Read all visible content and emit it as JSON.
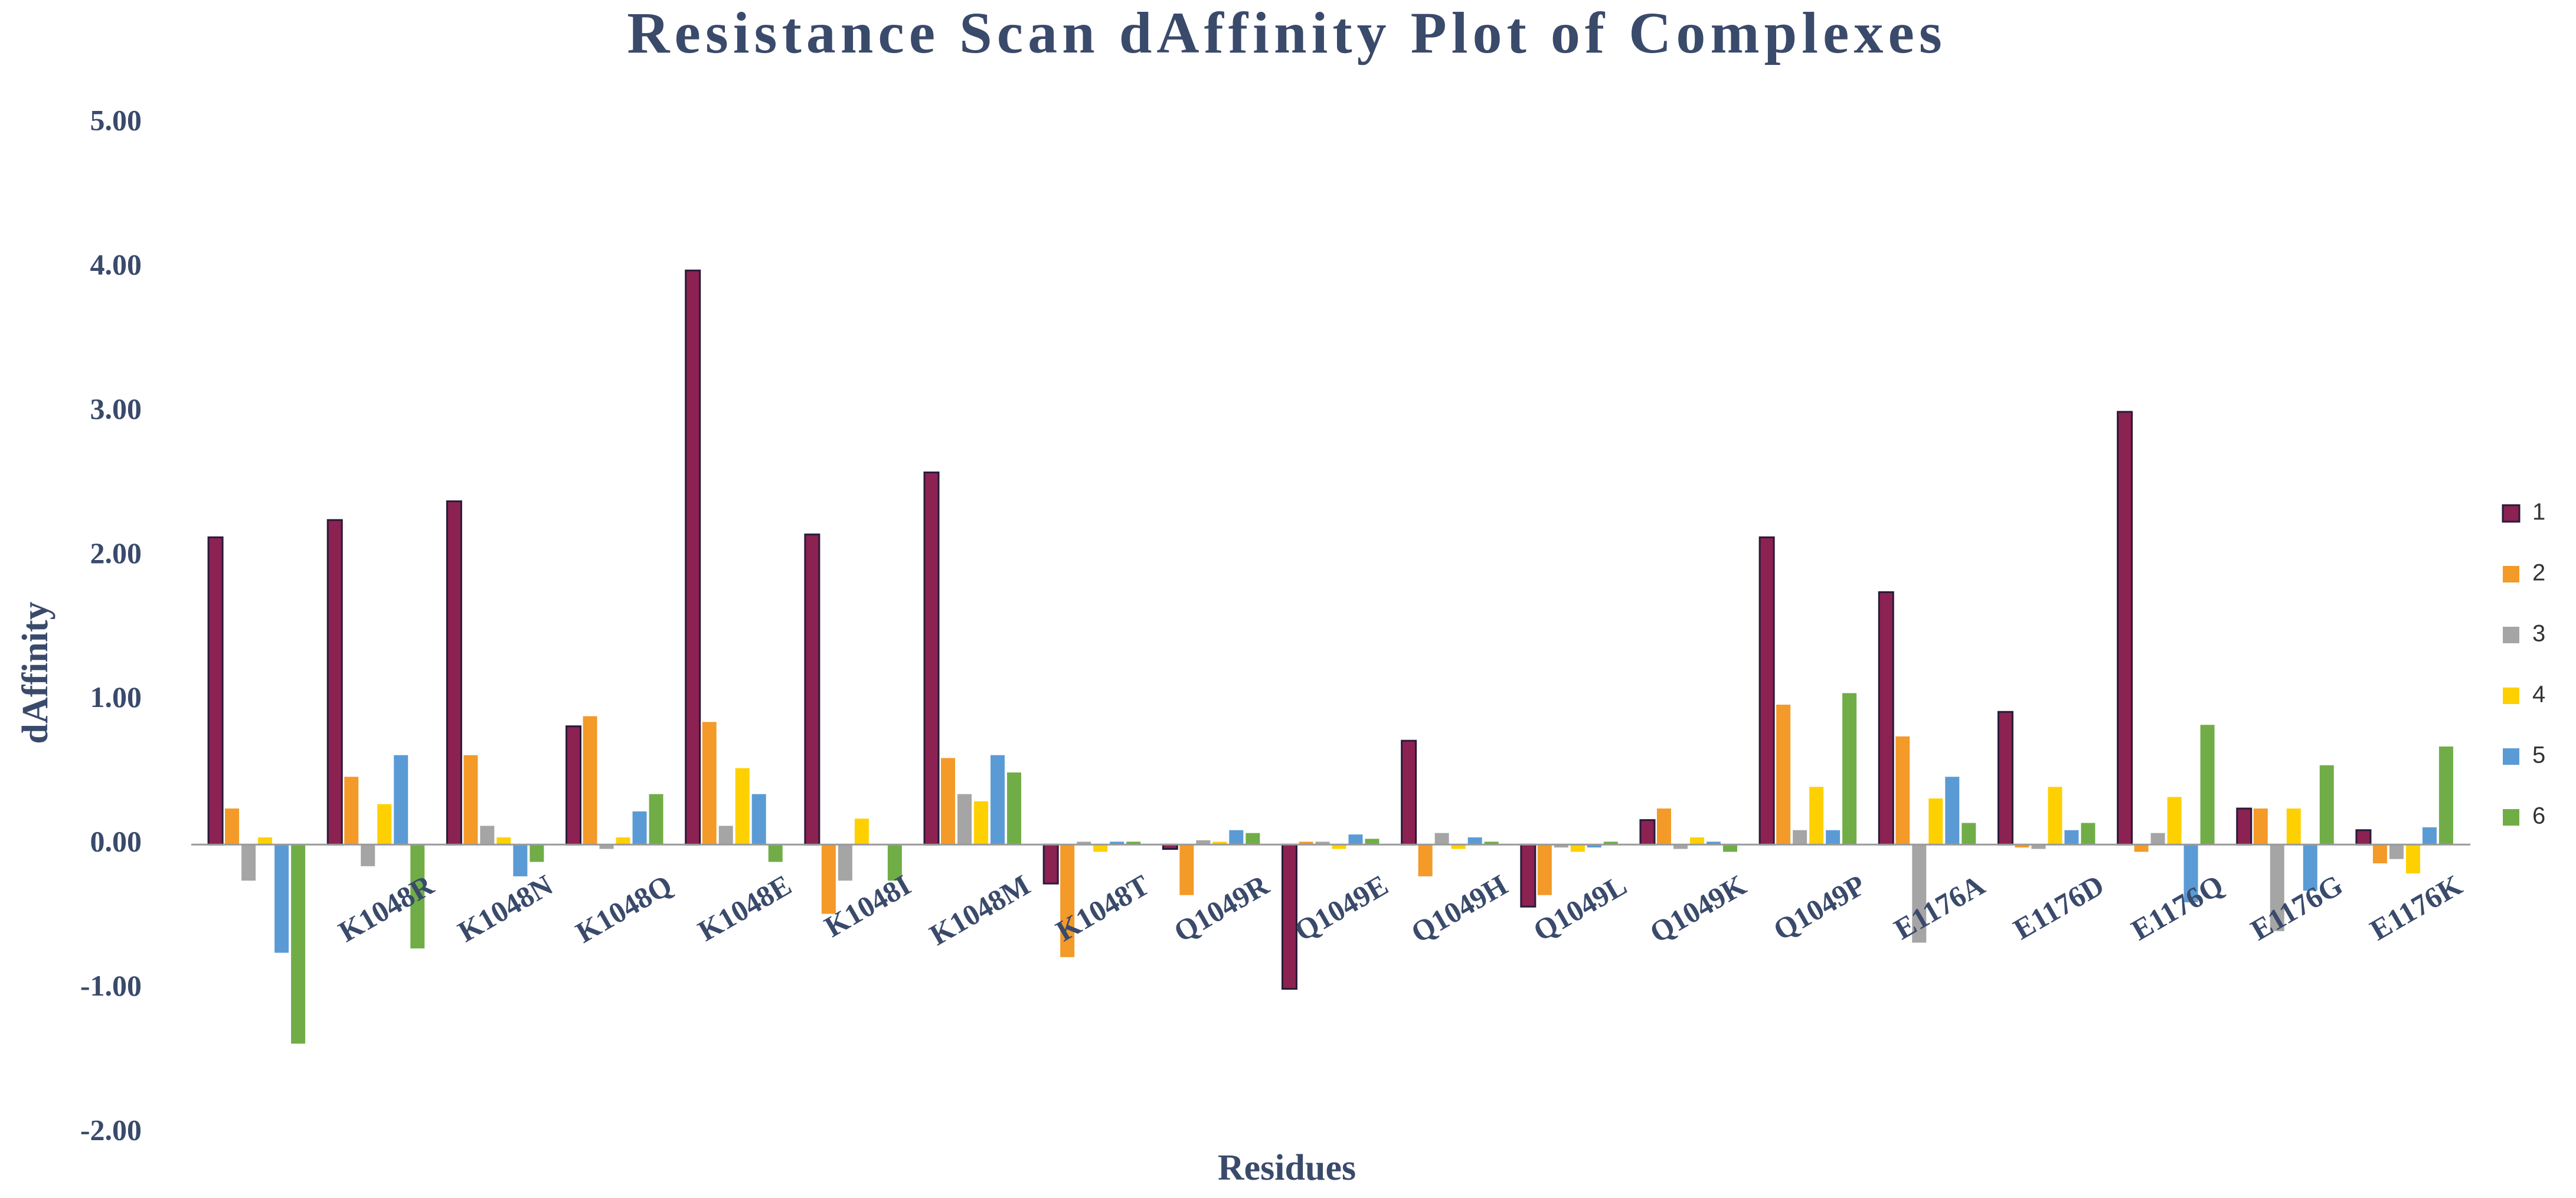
{
  "chart_data": {
    "type": "bar",
    "title": "Resistance Scan dAffinity Plot of Complexes",
    "x_label": "Residues",
    "y_label": "dAffinity",
    "categories": [
      null,
      "K1048R",
      "K1048N",
      "K1048Q",
      "K1048E",
      "K1048I",
      "K1048M",
      "K1048T",
      "Q1049R",
      "Q1049E",
      "Q1049H",
      "Q1049L",
      "Q1049K",
      "Q1049P",
      "E1176A",
      "E1176D",
      "E1176Q",
      "E1176G",
      "E1176K"
    ],
    "series": [
      {
        "name": "1",
        "color": "#8b2252",
        "values": [
          2.13,
          2.25,
          2.38,
          0.82,
          3.98,
          2.15,
          2.58,
          -0.27,
          -0.03,
          -1.0,
          0.72,
          -0.43,
          0.17,
          2.13,
          1.75,
          0.92,
          3.0,
          0.25,
          0.1
        ]
      },
      {
        "name": "2",
        "color": "#f39a28",
        "values": [
          0.25,
          0.47,
          0.62,
          0.89,
          0.85,
          -0.48,
          0.6,
          -0.78,
          -0.35,
          0.02,
          -0.22,
          -0.35,
          0.25,
          0.97,
          0.75,
          -0.02,
          -0.05,
          0.25,
          -0.13
        ]
      },
      {
        "name": "3",
        "color": "#a5a5a5",
        "values": [
          -0.25,
          -0.15,
          0.13,
          -0.03,
          0.13,
          -0.25,
          0.35,
          0.02,
          0.03,
          0.02,
          0.08,
          -0.02,
          -0.03,
          0.1,
          -0.68,
          -0.03,
          0.08,
          -0.6,
          -0.1
        ]
      },
      {
        "name": "4",
        "color": "#ffd000",
        "values": [
          0.05,
          0.28,
          0.05,
          0.05,
          0.53,
          0.18,
          0.3,
          -0.05,
          0.02,
          -0.03,
          -0.03,
          -0.05,
          0.05,
          0.4,
          0.32,
          0.4,
          0.33,
          0.25,
          -0.2
        ]
      },
      {
        "name": "5",
        "color": "#5b9bd5",
        "values": [
          -0.75,
          0.62,
          -0.22,
          0.23,
          0.35,
          0.0,
          0.62,
          0.02,
          0.1,
          0.07,
          0.05,
          -0.02,
          0.02,
          0.1,
          0.47,
          0.1,
          -0.4,
          -0.32,
          0.12
        ]
      },
      {
        "name": "6",
        "color": "#70ad47",
        "values": [
          -1.38,
          -0.72,
          -0.12,
          0.35,
          -0.12,
          -0.25,
          0.5,
          0.02,
          0.08,
          0.04,
          0.02,
          0.02,
          -0.05,
          1.05,
          0.15,
          0.15,
          0.83,
          0.55,
          0.68
        ]
      }
    ],
    "ylim": [
      -2,
      5
    ],
    "yticks": [
      {
        "value": -2,
        "label": "-2.00"
      },
      {
        "value": -1,
        "label": "-1.00"
      },
      {
        "value": 0,
        "label": "0.00"
      },
      {
        "value": 1,
        "label": "1.00"
      },
      {
        "value": 2,
        "label": "2.00"
      },
      {
        "value": 3,
        "label": "3.00"
      },
      {
        "value": 4,
        "label": "4.00"
      },
      {
        "value": 5,
        "label": "5.00"
      }
    ],
    "legend": "right"
  }
}
